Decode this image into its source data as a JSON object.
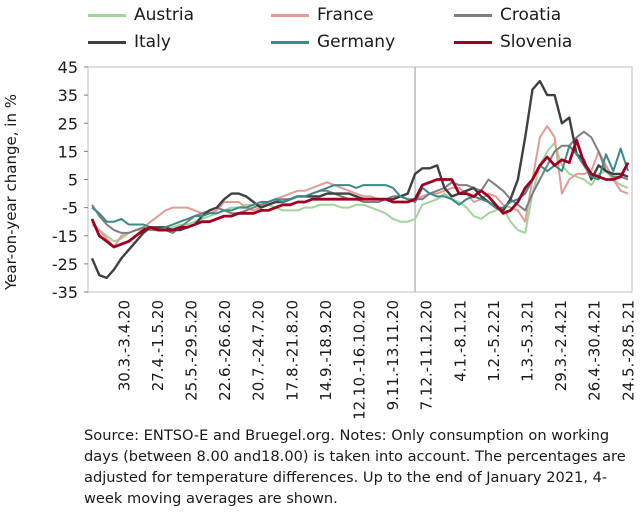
{
  "chart_data": {
    "type": "line",
    "ylabel": "Year-on-year change, in %",
    "ylim": [
      -35,
      45
    ],
    "yticks": [
      45,
      35,
      25,
      15,
      5,
      -5,
      -15,
      -25,
      -35
    ],
    "xtick_labels": [
      "30.3.-3.4.20",
      "27.4.-1.5.20",
      "25.5.-29.5.20",
      "22.6.-26.6.20",
      "20.7.-24.7.20",
      "17.8.-21.8.20",
      "14.9.-18.9.20",
      "12.10.-16.10.20",
      "9.11.-13.11.20",
      "7.12.-11.12.20",
      "4.1.-8.1.21",
      "1.2.-5.2.21",
      "1.3.-5.3.21",
      "29.3.-2.4.21",
      "26.4.-30.4.21",
      "24.5.-28.5.21"
    ],
    "vertical_line_after_index": 44,
    "series": [
      {
        "name": "Austria",
        "color": "#9fd59b",
        "values": [
          -10,
          -13,
          -15,
          -17,
          -16,
          -14,
          -13,
          -13,
          -12,
          -13,
          -13,
          -12,
          -11,
          -11,
          -10,
          -9,
          -8,
          -7,
          -6,
          -5,
          -5,
          -4,
          -4,
          -4,
          -4,
          -5,
          -6,
          -6,
          -6,
          -5,
          -5,
          -4,
          -4,
          -4,
          -5,
          -5,
          -4,
          -4,
          -5,
          -6,
          -7,
          -9,
          -10,
          -10,
          -9,
          -4,
          -3,
          -2,
          0,
          -2,
          -3,
          -5,
          -8,
          -9,
          -7,
          -6,
          -5,
          -10,
          -13,
          -14,
          0,
          10,
          15,
          18,
          10,
          7,
          6,
          5,
          3,
          7,
          8,
          5,
          3,
          2
        ]
      },
      {
        "name": "France",
        "color": "#e49b95",
        "values": [
          -11,
          -13,
          -16,
          -19,
          -15,
          -14,
          -13,
          -12,
          -10,
          -8,
          -6,
          -5,
          -5,
          -5,
          -6,
          -7,
          -7,
          -6,
          -3,
          -3,
          -3,
          -5,
          -6,
          -5,
          -3,
          -2,
          -1,
          0,
          1,
          1,
          2,
          3,
          4,
          3,
          2,
          1,
          0,
          -1,
          -1,
          -2,
          -2,
          -3,
          -3,
          -3,
          -2,
          -1,
          0,
          0,
          1,
          2,
          2,
          0,
          -3,
          -2,
          0,
          -1,
          -4,
          -5,
          -6,
          -10,
          5,
          20,
          24,
          20,
          0,
          5,
          7,
          7,
          8,
          15,
          10,
          5,
          1,
          0
        ]
      },
      {
        "name": "Croatia",
        "color": "#7f7f7f",
        "values": [
          -4,
          -8,
          -11,
          -13,
          -14,
          -14,
          -13,
          -12,
          -13,
          -13,
          -13,
          -14,
          -12,
          -10,
          -8,
          -7,
          -6,
          -5,
          -6,
          -7,
          -7,
          -6,
          -5,
          -4,
          -3,
          -2,
          -2,
          -2,
          -1,
          -1,
          0,
          1,
          1,
          0,
          -1,
          -2,
          -2,
          -3,
          -3,
          -3,
          -2,
          -1,
          -1,
          -2,
          -2,
          -2,
          0,
          1,
          2,
          4,
          3,
          3,
          2,
          1,
          5,
          3,
          1,
          -2,
          -4,
          -6,
          0,
          5,
          10,
          15,
          17,
          17,
          20,
          22,
          20,
          15,
          8,
          6,
          6,
          5
        ]
      },
      {
        "name": "Italy",
        "color": "#404040",
        "values": [
          -23,
          -29,
          -30,
          -27,
          -23,
          -20,
          -17,
          -14,
          -12,
          -12,
          -12,
          -13,
          -13,
          -12,
          -11,
          -8,
          -6,
          -5,
          -2,
          0,
          0,
          -1,
          -3,
          -5,
          -4,
          -3,
          -3,
          -2,
          -1,
          -1,
          -1,
          -1,
          0,
          0,
          0,
          0,
          -1,
          -2,
          -2,
          -2,
          -2,
          -2,
          -1,
          0,
          7,
          9,
          9,
          10,
          2,
          -1,
          0,
          1,
          2,
          -1,
          -3,
          -5,
          -6,
          -2,
          5,
          20,
          37,
          40,
          35,
          35,
          25,
          27,
          14,
          12,
          5,
          10,
          8,
          7,
          7,
          6
        ]
      },
      {
        "name": "Germany",
        "color": "#3a8a8a",
        "values": [
          -5,
          -7,
          -10,
          -10,
          -9,
          -11,
          -11,
          -11,
          -12,
          -13,
          -12,
          -11,
          -10,
          -9,
          -8,
          -8,
          -7,
          -7,
          -6,
          -6,
          -5,
          -5,
          -4,
          -3,
          -3,
          -2,
          -3,
          -2,
          -1,
          -1,
          0,
          1,
          2,
          3,
          3,
          3,
          2,
          3,
          3,
          3,
          3,
          2,
          -1,
          -2,
          -3,
          2,
          0,
          -1,
          -1,
          -2,
          -4,
          -2,
          -1,
          -2,
          -3,
          -5,
          -5,
          -3,
          -2,
          0,
          5,
          10,
          8,
          10,
          8,
          17,
          14,
          10,
          6,
          5,
          14,
          8,
          16,
          8
        ]
      },
      {
        "name": "Slovenia",
        "color": "#a00020",
        "values": [
          -9,
          -15,
          -17,
          -19,
          -18,
          -17,
          -15,
          -13,
          -12,
          -13,
          -13,
          -13,
          -12,
          -12,
          -11,
          -10,
          -10,
          -9,
          -8,
          -8,
          -7,
          -7,
          -7,
          -6,
          -6,
          -5,
          -4,
          -4,
          -3,
          -3,
          -2,
          -2,
          -2,
          -2,
          -2,
          -2,
          -2,
          -2,
          -2,
          -2,
          -2,
          -3,
          -3,
          -3,
          -2,
          3,
          4,
          5,
          5,
          5,
          0,
          0,
          -1,
          1,
          -1,
          -4,
          -7,
          -6,
          -3,
          2,
          5,
          10,
          13,
          10,
          12,
          11,
          19,
          11,
          7,
          6,
          5,
          5,
          6,
          11
        ]
      }
    ],
    "legend_position": "top",
    "source_note": "Source: ENTSO-E and Bruegel.org. Notes: Only consumption on working days (between 8.00 and18.00) is taken into account. The percentages are adjusted for temperature differences. Up to the end of January 2021, 4-week moving averages are shown."
  }
}
